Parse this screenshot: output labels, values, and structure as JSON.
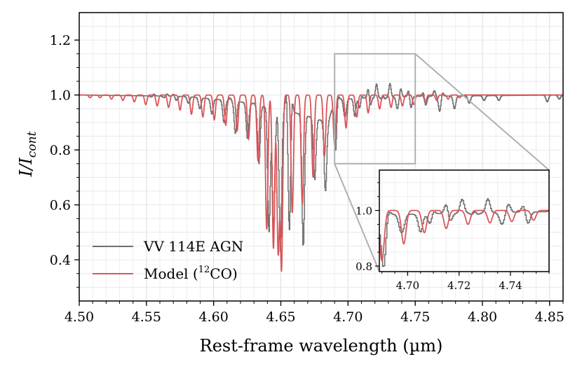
{
  "chart_data": {
    "type": "line",
    "xlabel": "Rest-frame wavelength (µm)",
    "ylabel": "I/I",
    "ylabel_sub": "cont",
    "xlim": [
      4.5,
      4.86
    ],
    "ylim": [
      0.25,
      1.3
    ],
    "xticks": [
      4.5,
      4.55,
      4.6,
      4.65,
      4.7,
      4.75,
      4.8,
      4.85
    ],
    "xtick_labels": [
      "4.50",
      "4.55",
      "4.60",
      "4.65",
      "4.70",
      "4.75",
      "4.80",
      "4.85"
    ],
    "yticks": [
      0.4,
      0.6,
      0.8,
      1.0,
      1.2
    ],
    "ytick_labels": [
      "0.4",
      "0.6",
      "0.8",
      "1.0",
      "1.2"
    ],
    "grid": true,
    "legend_position": "bottom-left",
    "colors": {
      "data": "#6e6e6e",
      "model": "#d9565a",
      "zoom_box": "#b0b0b0",
      "grid": "#e6e6e6"
    },
    "series": [
      {
        "name": "VV 114E AGN",
        "style": "step",
        "continuum_points": [
          [
            4.5,
            1.0
          ],
          [
            4.58,
            0.995
          ],
          [
            4.6,
            0.985
          ],
          [
            4.62,
            0.975
          ],
          [
            4.635,
            0.96
          ],
          [
            4.645,
            0.95
          ],
          [
            4.655,
            0.94
          ],
          [
            4.665,
            0.93
          ],
          [
            4.675,
            0.915
          ],
          [
            4.685,
            0.9
          ],
          [
            4.69,
            0.985
          ],
          [
            4.75,
            0.995
          ],
          [
            4.86,
            1.0
          ]
        ],
        "absorption_lines": [
          [
            4.554,
            0.99
          ],
          [
            4.563,
            0.99
          ],
          [
            4.572,
            0.98
          ],
          [
            4.581,
            0.97
          ],
          [
            4.5895,
            0.95
          ],
          [
            4.5985,
            0.93
          ],
          [
            4.6075,
            0.9
          ],
          [
            4.616,
            0.86
          ],
          [
            4.625,
            0.84
          ],
          [
            4.6335,
            0.75
          ],
          [
            4.641,
            0.5
          ],
          [
            4.6445,
            0.51
          ],
          [
            4.6495,
            0.43
          ],
          [
            4.656,
            0.395
          ],
          [
            4.6665,
            0.445
          ],
          [
            4.675,
            0.69
          ],
          [
            4.683,
            0.65
          ],
          [
            4.6905,
            0.79
          ],
          [
            4.6975,
            0.88
          ],
          [
            4.7045,
            0.89
          ],
          [
            4.709,
            0.92
          ],
          [
            4.716,
            0.95
          ],
          [
            4.726,
            0.94
          ],
          [
            4.7365,
            0.95
          ],
          [
            4.7465,
            0.95
          ],
          [
            4.7575,
            0.96
          ],
          [
            4.768,
            0.94
          ],
          [
            4.779,
            0.95
          ],
          [
            4.79,
            0.97
          ],
          [
            4.801,
            0.98
          ],
          [
            4.812,
            0.98
          ],
          [
            4.848,
            0.975
          ],
          [
            4.857,
            0.985
          ]
        ],
        "emission_peaks": [
          [
            4.555,
            1.01
          ],
          [
            4.565,
            1.008
          ],
          [
            4.57,
            1.008
          ],
          [
            4.612,
            1.01
          ],
          [
            4.6295,
            1.005
          ],
          [
            4.654,
            1.08
          ],
          [
            4.6555,
            1.14
          ],
          [
            4.658,
            1.06
          ],
          [
            4.692,
            1.03
          ],
          [
            4.6975,
            1.04
          ],
          [
            4.704,
            1.045
          ],
          [
            4.7095,
            1.055
          ],
          [
            4.715,
            1.05
          ],
          [
            4.721,
            1.05
          ],
          [
            4.726,
            1.055
          ],
          [
            4.731,
            1.05
          ],
          [
            4.739,
            1.03
          ],
          [
            4.745,
            1.03
          ],
          [
            4.756,
            1.02
          ],
          [
            4.764,
            1.02
          ],
          [
            4.77,
            1.015
          ]
        ]
      },
      {
        "name": "Model (¹²CO)",
        "legend_text": "Model (",
        "legend_sup": "12",
        "legend_suffix": "CO)",
        "style": "line",
        "absorption_lines": [
          [
            4.508,
            0.99
          ],
          [
            4.5155,
            0.99
          ],
          [
            4.524,
            0.985
          ],
          [
            4.5325,
            0.98
          ],
          [
            4.541,
            0.975
          ],
          [
            4.5495,
            0.965
          ],
          [
            4.558,
            0.96
          ],
          [
            4.5665,
            0.955
          ],
          [
            4.575,
            0.945
          ],
          [
            4.5835,
            0.93
          ],
          [
            4.592,
            0.92
          ],
          [
            4.6005,
            0.91
          ],
          [
            4.609,
            0.89
          ],
          [
            4.6175,
            0.87
          ],
          [
            4.626,
            0.84
          ],
          [
            4.633,
            0.76
          ],
          [
            4.6395,
            0.51
          ],
          [
            4.6445,
            0.44
          ],
          [
            4.648,
            0.43
          ],
          [
            4.6505,
            0.37
          ],
          [
            4.6585,
            0.57
          ],
          [
            4.666,
            0.6
          ],
          [
            4.674,
            0.7
          ],
          [
            4.6825,
            0.78
          ],
          [
            4.69,
            0.82
          ],
          [
            4.6985,
            0.88
          ],
          [
            4.7065,
            0.92
          ],
          [
            4.715,
            0.935
          ],
          [
            4.7235,
            0.95
          ],
          [
            4.732,
            0.955
          ],
          [
            4.7405,
            0.96
          ],
          [
            4.749,
            0.965
          ],
          [
            4.7575,
            0.975
          ],
          [
            4.766,
            0.98
          ],
          [
            4.7745,
            0.985
          ],
          [
            4.783,
            0.99
          ]
        ]
      }
    ],
    "inset": {
      "xlim": [
        4.689,
        4.755
      ],
      "ylim": [
        0.78,
        1.145
      ],
      "xticks": [
        4.7,
        4.72,
        4.74
      ],
      "xtick_labels": [
        "4.70",
        "4.72",
        "4.74"
      ],
      "yticks": [
        0.8,
        1.0
      ],
      "ytick_labels": [
        "0.8",
        "1.0"
      ],
      "zoom_region": {
        "x": [
          4.69,
          4.75
        ],
        "y": [
          0.75,
          1.15
        ]
      }
    }
  }
}
